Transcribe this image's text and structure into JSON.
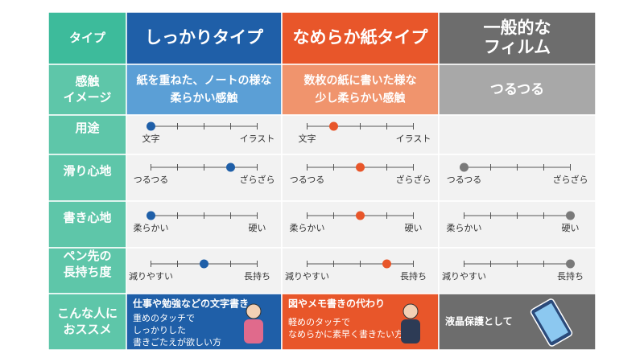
{
  "table": {
    "row_labels": [
      [
        "タイプ"
      ],
      [
        "感触",
        "イメージ"
      ],
      [
        "用途"
      ],
      [
        "滑り心地"
      ],
      [
        "書き心地"
      ],
      [
        "ペン先の",
        "長持ち度"
      ],
      [
        "こんな人に",
        "おススメ"
      ]
    ],
    "scales": [
      {
        "left": "文字",
        "right": "イラスト"
      },
      {
        "left": "つるつる",
        "right": "ざらざら"
      },
      {
        "left": "柔らかい",
        "right": "硬い"
      },
      {
        "left": "減りやすい",
        "right": "長持ち"
      }
    ],
    "columns": [
      {
        "name": [
          "しっかりタイプ"
        ],
        "feel": [
          "紙を重ねた、ノートの様な",
          "柔らかい感触"
        ],
        "color": "#1f5fa8",
        "light_color": "#5b9fd6",
        "dot_color": "#1f5fa8",
        "scale_values": [
          0,
          3,
          0,
          2
        ],
        "recommend": {
          "title": "仕事や勉強などの文字書き",
          "desc": [
            "重めのタッチで",
            "しっかりした",
            "書きごたえが欲しい方"
          ]
        }
      },
      {
        "name": [
          "なめらか紙タイプ"
        ],
        "feel": [
          "数枚の紙に書いた様な",
          "少し柔らかい感触"
        ],
        "color": "#e8562a",
        "light_color": "#f0946d",
        "dot_color": "#e8562a",
        "scale_values": [
          1,
          2,
          2,
          3
        ],
        "recommend": {
          "title": "図やメモ書きの代わり",
          "desc": [
            "軽めのタッチで",
            "なめらかに素早く書きたい方"
          ]
        }
      },
      {
        "name": [
          "一般的な",
          "フィルム"
        ],
        "feel": [
          "つるつる"
        ],
        "color": "#6d6d6d",
        "light_color": "#a8a8a8",
        "dot_color": "#7a7a7a",
        "scale_values": [
          null,
          0,
          4,
          4
        ],
        "recommend": {
          "title": "液晶保護として",
          "desc": []
        }
      }
    ]
  }
}
